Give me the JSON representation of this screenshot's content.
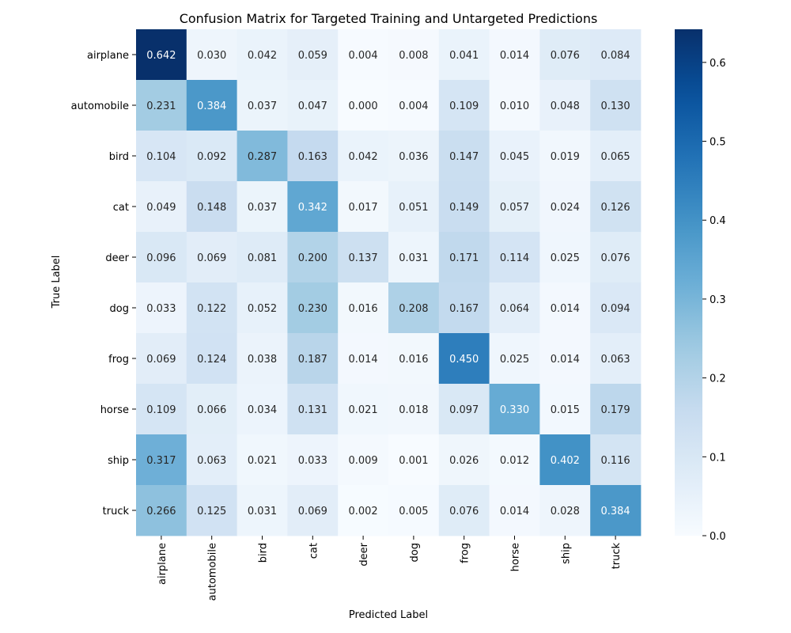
{
  "chart_data": {
    "type": "heatmap",
    "title": "Confusion Matrix for Targeted Training and Untargeted Predictions",
    "xlabel": "Predicted Label",
    "ylabel": "True Label",
    "x_categories": [
      "airplane",
      "automobile",
      "bird",
      "cat",
      "deer",
      "dog",
      "frog",
      "horse",
      "ship",
      "truck"
    ],
    "y_categories": [
      "airplane",
      "automobile",
      "bird",
      "cat",
      "deer",
      "dog",
      "frog",
      "horse",
      "ship",
      "truck"
    ],
    "values": [
      [
        0.642,
        0.03,
        0.042,
        0.059,
        0.004,
        0.008,
        0.041,
        0.014,
        0.076,
        0.084
      ],
      [
        0.231,
        0.384,
        0.037,
        0.047,
        0.0,
        0.004,
        0.109,
        0.01,
        0.048,
        0.13
      ],
      [
        0.104,
        0.092,
        0.287,
        0.163,
        0.042,
        0.036,
        0.147,
        0.045,
        0.019,
        0.065
      ],
      [
        0.049,
        0.148,
        0.037,
        0.342,
        0.017,
        0.051,
        0.149,
        0.057,
        0.024,
        0.126
      ],
      [
        0.096,
        0.069,
        0.081,
        0.2,
        0.137,
        0.031,
        0.171,
        0.114,
        0.025,
        0.076
      ],
      [
        0.033,
        0.122,
        0.052,
        0.23,
        0.016,
        0.208,
        0.167,
        0.064,
        0.014,
        0.094
      ],
      [
        0.069,
        0.124,
        0.038,
        0.187,
        0.014,
        0.016,
        0.45,
        0.025,
        0.014,
        0.063
      ],
      [
        0.109,
        0.066,
        0.034,
        0.131,
        0.021,
        0.018,
        0.097,
        0.33,
        0.015,
        0.179
      ],
      [
        0.317,
        0.063,
        0.021,
        0.033,
        0.009,
        0.001,
        0.026,
        0.012,
        0.402,
        0.116
      ],
      [
        0.266,
        0.125,
        0.031,
        0.069,
        0.002,
        0.005,
        0.076,
        0.014,
        0.028,
        0.384
      ]
    ],
    "value_format": "3 decimals",
    "colormap": "Blues",
    "colorbar": {
      "vmin": 0.0,
      "vmax": 0.642,
      "ticks": [
        0.0,
        0.1,
        0.2,
        0.3,
        0.4,
        0.5,
        0.6
      ],
      "tick_labels": [
        "0.0",
        "0.1",
        "0.2",
        "0.3",
        "0.4",
        "0.5",
        "0.6"
      ],
      "placement": "right"
    },
    "grid": false
  }
}
